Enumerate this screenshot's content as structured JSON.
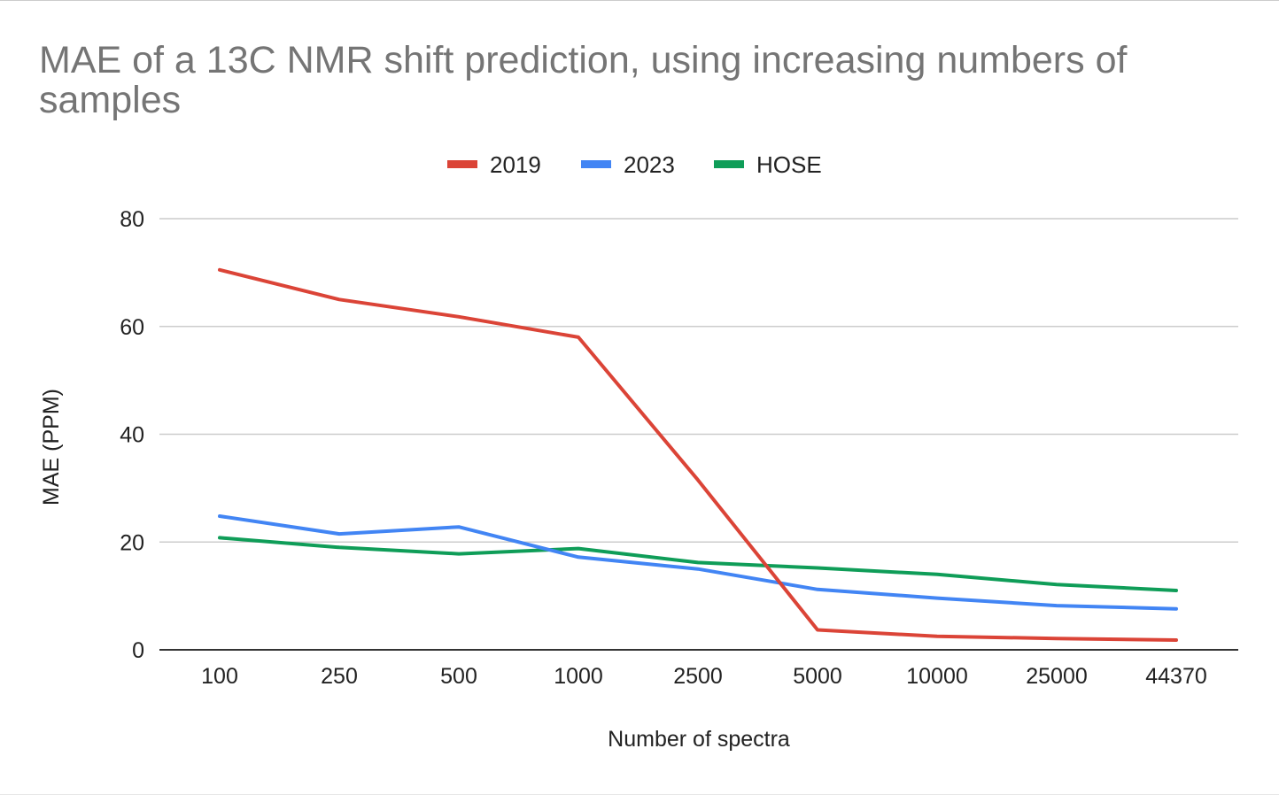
{
  "chart_data": {
    "type": "line",
    "title": "MAE of a 13C NMR shift prediction, using increasing numbers of samples",
    "xlabel": "Number of spectra",
    "ylabel": "MAE (PPM)",
    "categories": [
      "100",
      "250",
      "500",
      "1000",
      "2500",
      "5000",
      "10000",
      "25000",
      "44370"
    ],
    "ylim": [
      0,
      80
    ],
    "yticks": [
      "0",
      "20",
      "40",
      "60",
      "80"
    ],
    "grid": true,
    "legend_position": "top",
    "series": [
      {
        "name": "2019",
        "color": "#db4437",
        "values": [
          70.5,
          65,
          61.8,
          58,
          31.5,
          3.7,
          2.5,
          2.1,
          1.8
        ]
      },
      {
        "name": "2023",
        "color": "#4285f4",
        "values": [
          24.8,
          21.5,
          22.8,
          17.2,
          15,
          11.2,
          9.6,
          8.2,
          7.6
        ]
      },
      {
        "name": "HOSE",
        "color": "#0f9d58",
        "values": [
          20.8,
          19,
          17.8,
          18.8,
          16.2,
          15.2,
          14,
          12.1,
          11
        ]
      }
    ]
  }
}
